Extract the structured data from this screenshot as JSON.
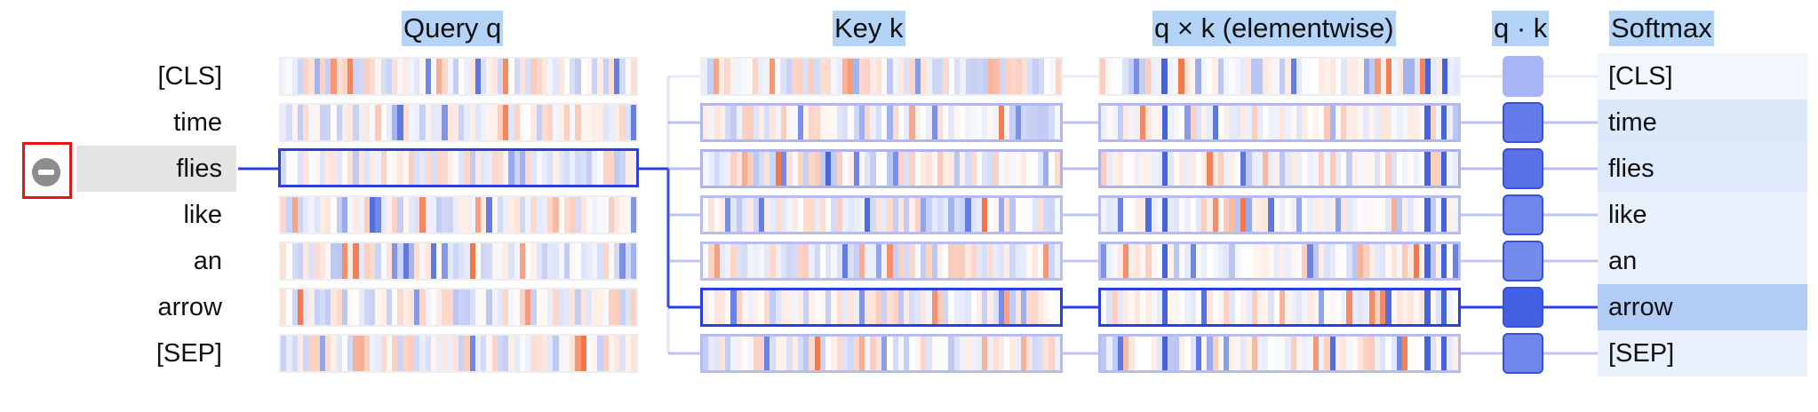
{
  "headers": {
    "query": "Query q",
    "key": "Key k",
    "product": "q × k (elementwise)",
    "dot": "q · k",
    "softmax": "Softmax"
  },
  "tokens": [
    "[CLS]",
    "time",
    "flies",
    "like",
    "an",
    "arrow",
    "[SEP]"
  ],
  "selected_token_index": 2,
  "highlighted_key_index": 5,
  "softmax_weights": [
    0.02,
    0.16,
    0.15,
    0.08,
    0.07,
    0.44,
    0.08
  ],
  "dot_strength": [
    0.25,
    0.7,
    0.78,
    0.62,
    0.58,
    0.92,
    0.62
  ],
  "colors": {
    "accent": "#2b3fe0",
    "positive": "#3b5bdb",
    "negative": "#f26b3a",
    "selected_row_bg": "#e4e4e4",
    "header_bg": "#b3d4f7",
    "toggle_box": "#e8141a"
  },
  "icons": {
    "collapse": "minus-circle-icon"
  }
}
